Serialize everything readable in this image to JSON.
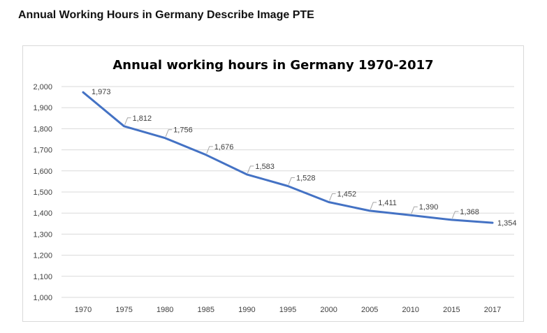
{
  "page": {
    "heading": "Annual Working Hours in Germany Describe Image PTE"
  },
  "chart_data": {
    "type": "line",
    "title": "Annual working hours in Germany 1970-2017",
    "xlabel": "",
    "ylabel": "",
    "categories": [
      "1970",
      "1975",
      "1980",
      "1985",
      "1990",
      "1995",
      "2000",
      "2005",
      "2010",
      "2015",
      "2017"
    ],
    "series": [
      {
        "values": [
          1973,
          1812,
          1756,
          1676,
          1583,
          1528,
          1452,
          1411,
          1390,
          1368,
          1354
        ],
        "labels": [
          "1,973",
          "1,812",
          "1,756",
          "1,676",
          "1,583",
          "1,528",
          "1,452",
          "1,411",
          "1,390",
          "1,368",
          "1,354"
        ],
        "color": "#4472c4"
      }
    ],
    "yticks": [
      "1,000",
      "1,100",
      "1,200",
      "1,300",
      "1,400",
      "1,500",
      "1,600",
      "1,700",
      "1,800",
      "1,900",
      "2,000"
    ],
    "ylim": [
      1000,
      2000
    ],
    "grid": true,
    "legend": "none"
  }
}
